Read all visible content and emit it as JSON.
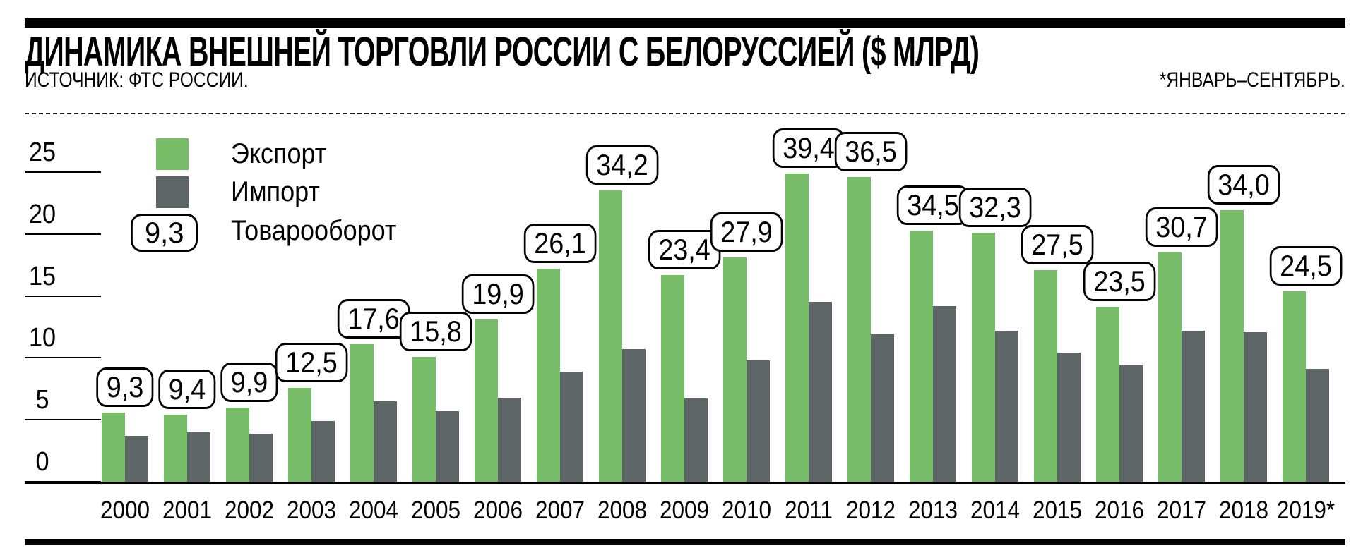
{
  "header": {
    "title": "ДИНАМИКА ВНЕШНЕЙ ТОРГОВЛИ РОССИИ С БЕЛОРУССИЕЙ ($ МЛРД)",
    "source": "ИСТОЧНИК: ФТС РОССИИ.",
    "note": "*ЯНВАРЬ–СЕНТЯБРЬ."
  },
  "legend": {
    "export_label": "Экспорт",
    "import_label": "Импорт",
    "turnover_label": "Товарооборот",
    "turnover_sample": "9,3"
  },
  "colors": {
    "export": "#77BD68",
    "import": "#5E6566",
    "text": "#000000",
    "background": "#FFFFFF"
  },
  "chart_data": {
    "type": "bar",
    "title": "ДИНАМИКА ВНЕШНЕЙ ТОРГОВЛИ РОССИИ С БЕЛОРУССИЕЙ ($ МЛРД)",
    "units": "$ млрд",
    "categories": [
      "2000",
      "2001",
      "2002",
      "2003",
      "2004",
      "2005",
      "2006",
      "2007",
      "2008",
      "2009",
      "2010",
      "2011",
      "2012",
      "2013",
      "2014",
      "2015",
      "2016",
      "2017",
      "2018",
      "2019*"
    ],
    "series": [
      {
        "name": "Экспорт",
        "color": "#77BD68",
        "values": [
          5.6,
          5.4,
          6.0,
          7.6,
          11.1,
          10.1,
          13.1,
          17.2,
          23.5,
          16.7,
          18.1,
          24.9,
          24.6,
          20.3,
          20.1,
          17.1,
          14.1,
          18.5,
          21.9,
          15.4
        ]
      },
      {
        "name": "Импорт",
        "color": "#5E6566",
        "values": [
          3.7,
          4.0,
          3.9,
          4.9,
          6.5,
          5.7,
          6.8,
          8.9,
          10.7,
          6.7,
          9.8,
          14.5,
          11.9,
          14.2,
          12.2,
          10.4,
          9.4,
          12.2,
          12.1,
          9.1
        ]
      }
    ],
    "turnover_series_name": "Товарооборот",
    "turnover_labels": [
      "9,3",
      "9,4",
      "9,9",
      "12,5",
      "17,6",
      "15,8",
      "19,9",
      "26,1",
      "34,2",
      "23,4",
      "27,9",
      "39,4",
      "36,5",
      "34,5",
      "32,3",
      "27,5",
      "23,5",
      "30,7",
      "34,0",
      "24,5"
    ],
    "turnover_values": [
      9.3,
      9.4,
      9.9,
      12.5,
      17.6,
      15.8,
      19.9,
      26.1,
      34.2,
      23.4,
      27.9,
      39.4,
      36.5,
      34.5,
      32.3,
      27.5,
      23.5,
      30.7,
      34.0,
      24.5
    ],
    "xlabel": "",
    "ylabel": "",
    "yticks": [
      0,
      5,
      10,
      15,
      20,
      25
    ],
    "ylim": [
      0,
      27
    ],
    "grid": "left-tick-marks-only",
    "legend_position": "top-left"
  }
}
